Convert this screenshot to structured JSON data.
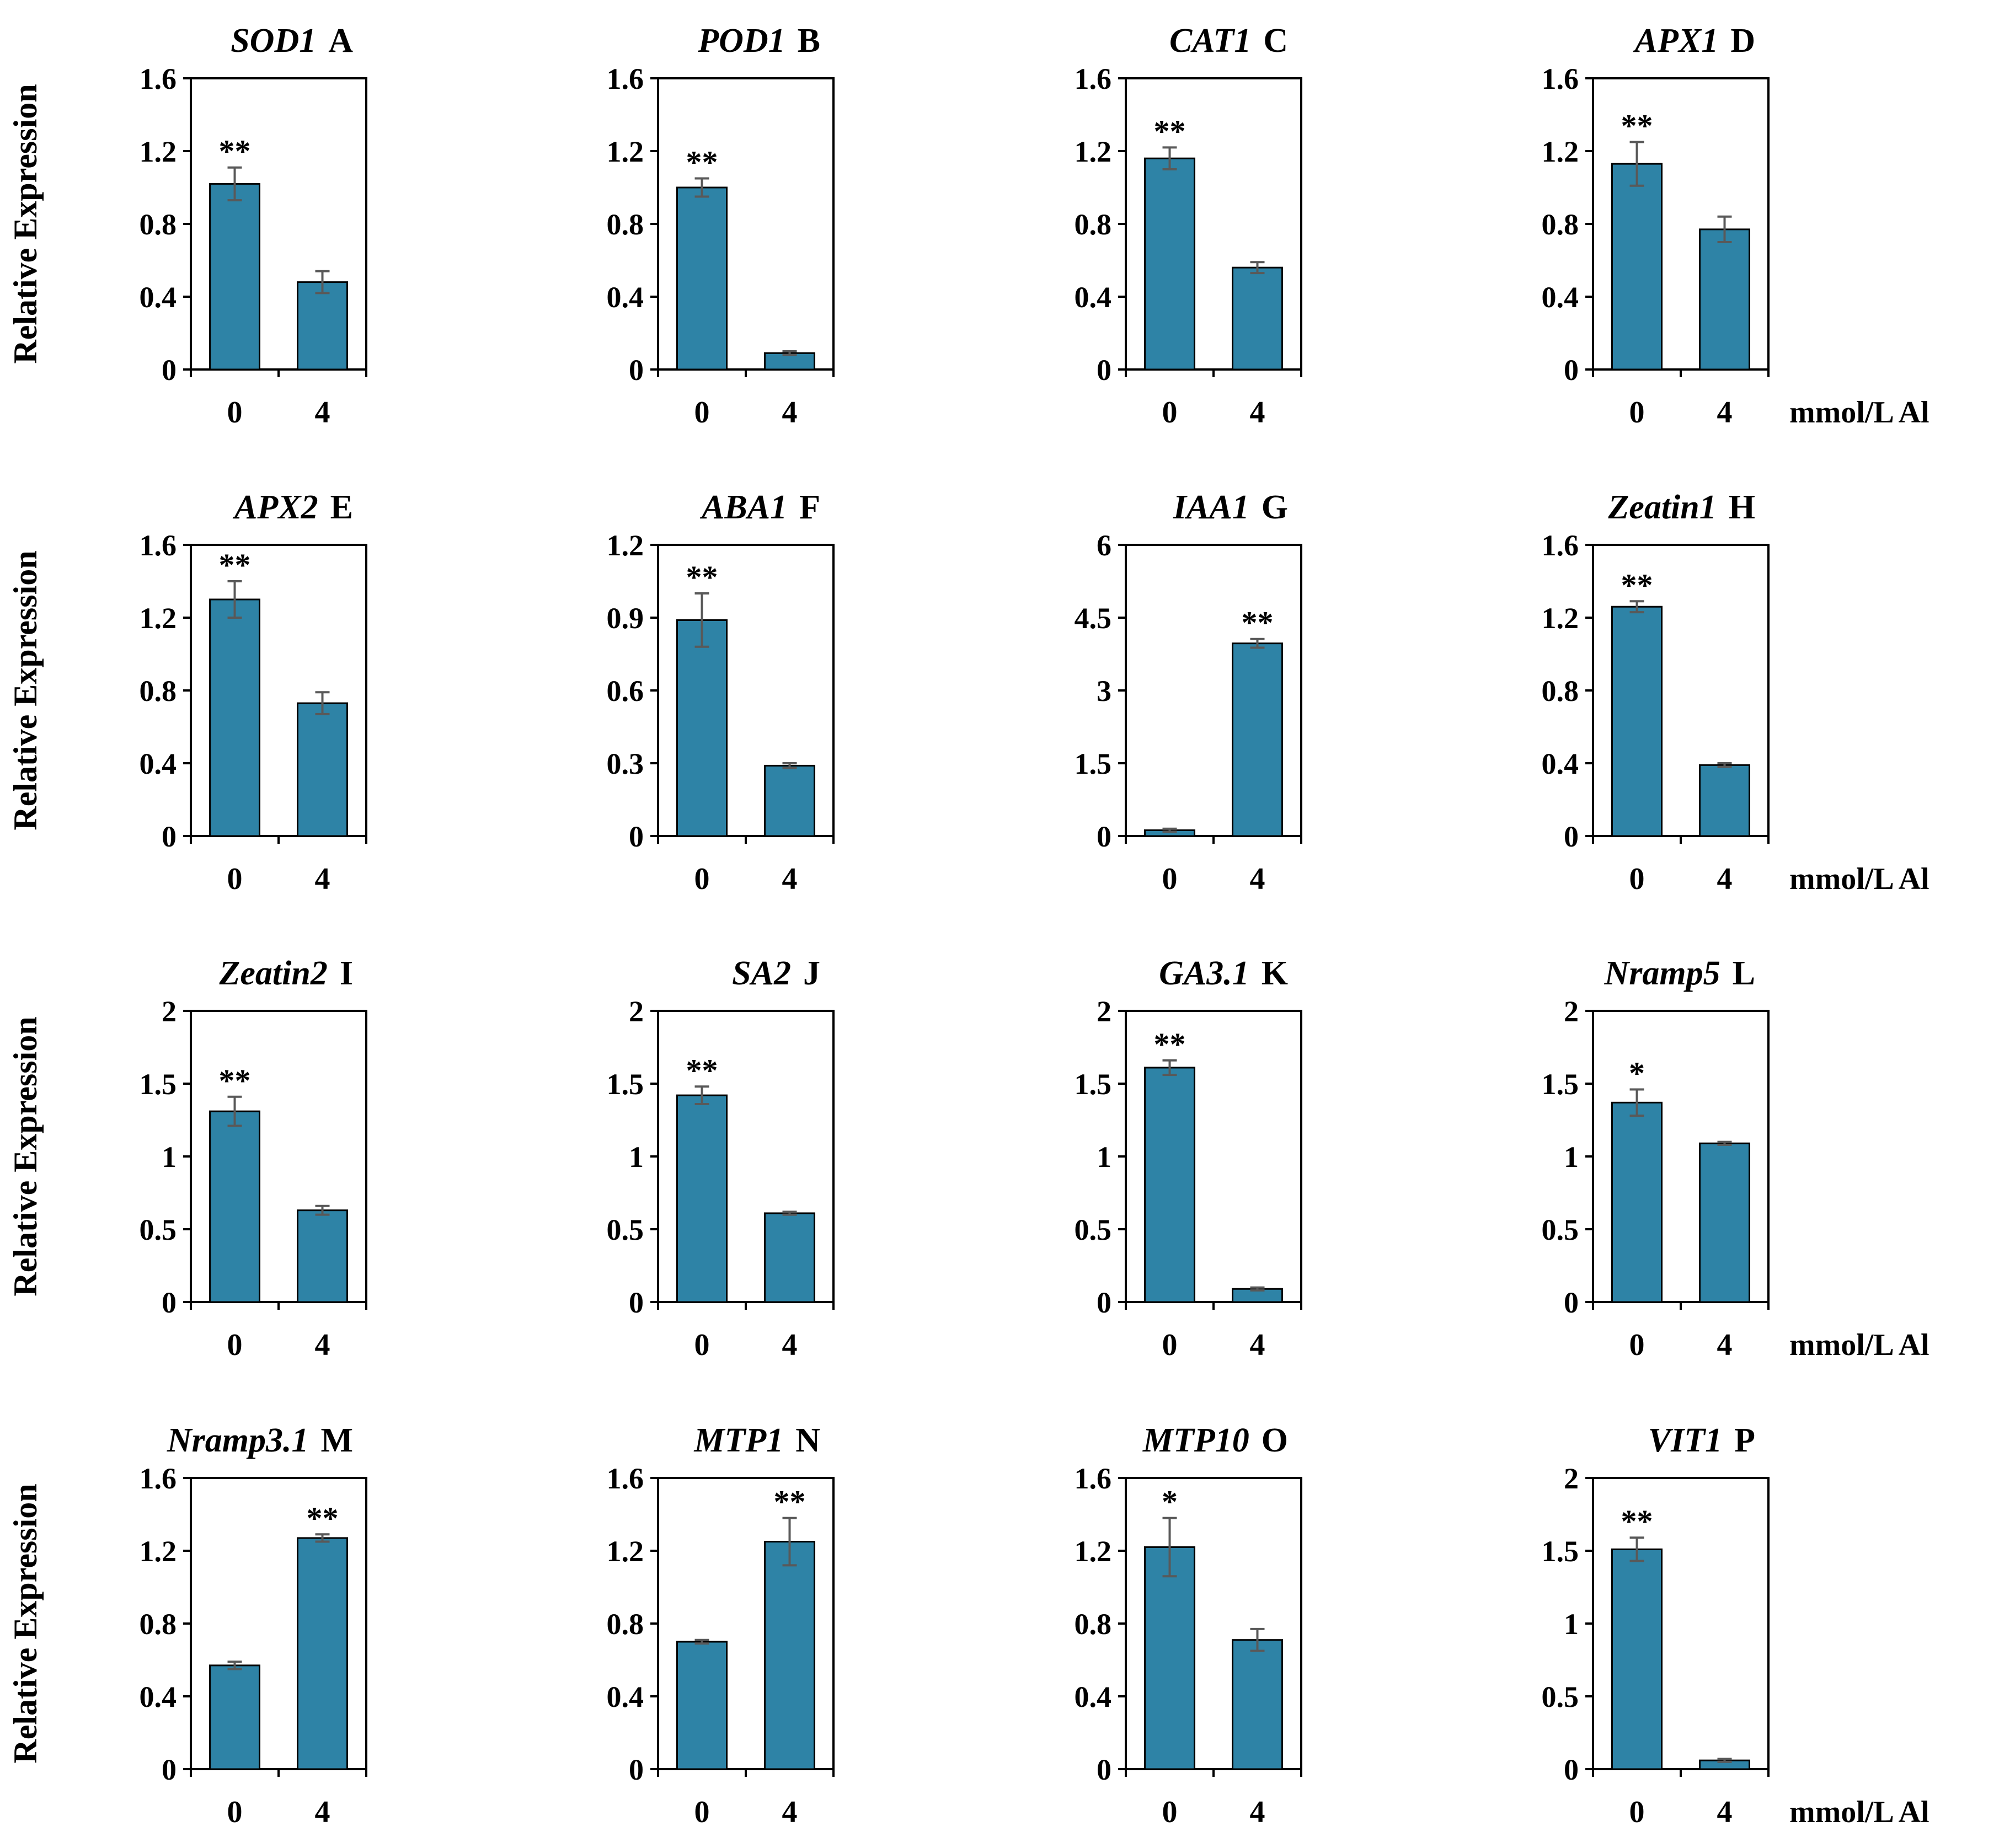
{
  "figure": {
    "ylabel": "Relative Expression",
    "xunit": "mmol/L Al",
    "bar_color": "#2e83a6",
    "error_color": "#595959"
  },
  "chart_data": [
    {
      "type": "bar",
      "gene": "SOD1",
      "letter": "A",
      "categories": [
        "0",
        "4"
      ],
      "values": [
        1.02,
        0.48
      ],
      "errors": [
        0.09,
        0.06
      ],
      "sig": [
        "**",
        ""
      ],
      "ylim": [
        0,
        1.6
      ],
      "yticks": [
        "0",
        "0.4",
        "0.8",
        "1.2",
        "1.6"
      ],
      "ylabel": "Relative Expression",
      "xunit": ""
    },
    {
      "type": "bar",
      "gene": "POD1",
      "letter": "B",
      "categories": [
        "0",
        "4"
      ],
      "values": [
        1.0,
        0.09
      ],
      "errors": [
        0.05,
        0.01
      ],
      "sig": [
        "**",
        ""
      ],
      "ylim": [
        0,
        1.6
      ],
      "yticks": [
        "0",
        "0.4",
        "0.8",
        "1.2",
        "1.6"
      ],
      "ylabel": "",
      "xunit": ""
    },
    {
      "type": "bar",
      "gene": "CAT1",
      "letter": "C",
      "categories": [
        "0",
        "4"
      ],
      "values": [
        1.16,
        0.56
      ],
      "errors": [
        0.06,
        0.03
      ],
      "sig": [
        "**",
        ""
      ],
      "ylim": [
        0,
        1.6
      ],
      "yticks": [
        "0",
        "0.4",
        "0.8",
        "1.2",
        "1.6"
      ],
      "ylabel": "",
      "xunit": ""
    },
    {
      "type": "bar",
      "gene": "APX1",
      "letter": "D",
      "categories": [
        "0",
        "4"
      ],
      "values": [
        1.13,
        0.77
      ],
      "errors": [
        0.12,
        0.07
      ],
      "sig": [
        "**",
        ""
      ],
      "ylim": [
        0,
        1.6
      ],
      "yticks": [
        "0",
        "0.4",
        "0.8",
        "1.2",
        "1.6"
      ],
      "ylabel": "",
      "xunit": "mmol/L Al"
    },
    {
      "type": "bar",
      "gene": "APX2",
      "letter": "E",
      "categories": [
        "0",
        "4"
      ],
      "values": [
        1.3,
        0.73
      ],
      "errors": [
        0.1,
        0.06
      ],
      "sig": [
        "**",
        ""
      ],
      "ylim": [
        0,
        1.6
      ],
      "yticks": [
        "0",
        "0.4",
        "0.8",
        "1.2",
        "1.6"
      ],
      "ylabel": "Relative Expression",
      "xunit": ""
    },
    {
      "type": "bar",
      "gene": "ABA1",
      "letter": "F",
      "categories": [
        "0",
        "4"
      ],
      "values": [
        0.89,
        0.29
      ],
      "errors": [
        0.11,
        0.01
      ],
      "sig": [
        "**",
        ""
      ],
      "ylim": [
        0,
        1.2
      ],
      "yticks": [
        "0",
        "0.3",
        "0.6",
        "0.9",
        "1.2"
      ],
      "ylabel": "",
      "xunit": ""
    },
    {
      "type": "bar",
      "gene": "IAA1",
      "letter": "G",
      "categories": [
        "0",
        "4"
      ],
      "values": [
        0.12,
        3.97
      ],
      "errors": [
        0.03,
        0.09
      ],
      "sig": [
        "",
        "**"
      ],
      "ylim": [
        0,
        6
      ],
      "yticks": [
        "0",
        "1.5",
        "3",
        "4.5",
        "6"
      ],
      "ylabel": "",
      "xunit": ""
    },
    {
      "type": "bar",
      "gene": "Zeatin1",
      "letter": "H",
      "categories": [
        "0",
        "4"
      ],
      "values": [
        1.26,
        0.39
      ],
      "errors": [
        0.03,
        0.01
      ],
      "sig": [
        "**",
        ""
      ],
      "ylim": [
        0,
        1.6
      ],
      "yticks": [
        "0",
        "0.4",
        "0.8",
        "1.2",
        "1.6"
      ],
      "ylabel": "",
      "xunit": "mmol/L Al"
    },
    {
      "type": "bar",
      "gene": "Zeatin2",
      "letter": "I",
      "categories": [
        "0",
        "4"
      ],
      "values": [
        1.31,
        0.63
      ],
      "errors": [
        0.1,
        0.03
      ],
      "sig": [
        "**",
        ""
      ],
      "ylim": [
        0,
        2
      ],
      "yticks": [
        "0",
        "0.5",
        "1",
        "1.5",
        "2"
      ],
      "ylabel": "Relative Expression",
      "xunit": ""
    },
    {
      "type": "bar",
      "gene": "SA2",
      "letter": "J",
      "categories": [
        "0",
        "4"
      ],
      "values": [
        1.42,
        0.61
      ],
      "errors": [
        0.06,
        0.01
      ],
      "sig": [
        "**",
        ""
      ],
      "ylim": [
        0,
        2
      ],
      "yticks": [
        "0",
        "0.5",
        "1",
        "1.5",
        "2"
      ],
      "ylabel": "",
      "xunit": ""
    },
    {
      "type": "bar",
      "gene": "GA3.1",
      "letter": "K",
      "categories": [
        "0",
        "4"
      ],
      "values": [
        1.61,
        0.09
      ],
      "errors": [
        0.05,
        0.01
      ],
      "sig": [
        "**",
        ""
      ],
      "ylim": [
        0,
        2
      ],
      "yticks": [
        "0",
        "0.5",
        "1",
        "1.5",
        "2"
      ],
      "ylabel": "",
      "xunit": ""
    },
    {
      "type": "bar",
      "gene": "Nramp5",
      "letter": "L",
      "categories": [
        "0",
        "4"
      ],
      "values": [
        1.37,
        1.09
      ],
      "errors": [
        0.09,
        0.01
      ],
      "sig": [
        "*",
        ""
      ],
      "ylim": [
        0,
        2
      ],
      "yticks": [
        "0",
        "0.5",
        "1",
        "1.5",
        "2"
      ],
      "ylabel": "",
      "xunit": "mmol/L Al"
    },
    {
      "type": "bar",
      "gene": "Nramp3.1",
      "letter": "M",
      "categories": [
        "0",
        "4"
      ],
      "values": [
        0.57,
        1.27
      ],
      "errors": [
        0.02,
        0.02
      ],
      "sig": [
        "",
        "**"
      ],
      "ylim": [
        0,
        1.6
      ],
      "yticks": [
        "0",
        "0.4",
        "0.8",
        "1.2",
        "1.6"
      ],
      "ylabel": "Relative Expression",
      "xunit": ""
    },
    {
      "type": "bar",
      "gene": "MTP1",
      "letter": "N",
      "categories": [
        "0",
        "4"
      ],
      "values": [
        0.7,
        1.25
      ],
      "errors": [
        0.01,
        0.13
      ],
      "sig": [
        "",
        "**"
      ],
      "ylim": [
        0,
        1.6
      ],
      "yticks": [
        "0",
        "0.4",
        "0.8",
        "1.2",
        "1.6"
      ],
      "ylabel": "",
      "xunit": ""
    },
    {
      "type": "bar",
      "gene": "MTP10",
      "letter": "O",
      "categories": [
        "0",
        "4"
      ],
      "values": [
        1.22,
        0.71
      ],
      "errors": [
        0.16,
        0.06
      ],
      "sig": [
        "*",
        ""
      ],
      "ylim": [
        0,
        1.6
      ],
      "yticks": [
        "0",
        "0.4",
        "0.8",
        "1.2",
        "1.6"
      ],
      "ylabel": "",
      "xunit": ""
    },
    {
      "type": "bar",
      "gene": "VIT1",
      "letter": "P",
      "categories": [
        "0",
        "4"
      ],
      "values": [
        1.51,
        0.06
      ],
      "errors": [
        0.08,
        0.01
      ],
      "sig": [
        "**",
        ""
      ],
      "ylim": [
        0,
        2
      ],
      "yticks": [
        "0",
        "0.5",
        "1",
        "1.5",
        "2"
      ],
      "ylabel": "",
      "xunit": "mmol/L Al"
    }
  ]
}
